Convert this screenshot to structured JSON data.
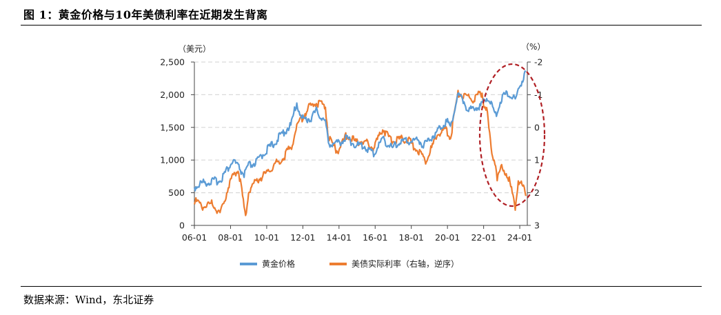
{
  "figure": {
    "title": "图 1：黄金价格与10年美债利率在近期发生背离",
    "source": "数据来源：Wind，东北证券"
  },
  "colors": {
    "gold": "#5b9bd5",
    "real_rate": "#ed7d31",
    "ellipse": "#b01f24",
    "grid": "#d9d9d9"
  },
  "chart_data": {
    "type": "line",
    "title": "",
    "left_axis": {
      "unit": "（美元）",
      "ylim": [
        0,
        2500
      ],
      "ticks": [
        "0",
        "500",
        "1,000",
        "1,500",
        "2,000",
        "2,500"
      ]
    },
    "right_axis": {
      "unit": "（%）",
      "ylim": [
        -2,
        3
      ],
      "inverted": true,
      "ticks": [
        "-2",
        "-1",
        "0",
        "1",
        "2",
        "3"
      ]
    },
    "x_axis": {
      "range": [
        "2006-01",
        "2024-06"
      ],
      "ticks": [
        "06-01",
        "08-01",
        "10-01",
        "12-01",
        "14-01",
        "16-01",
        "18-01",
        "20-01",
        "22-01",
        "24-01"
      ]
    },
    "grid": true,
    "legend_position": "bottom",
    "series": [
      {
        "name": "黄金价格",
        "axis": "left",
        "x": [
          "2006-01",
          "2006-06",
          "2007-01",
          "2007-06",
          "2008-01",
          "2008-03",
          "2008-10",
          "2009-01",
          "2009-06",
          "2009-12",
          "2010-06",
          "2010-12",
          "2011-05",
          "2011-09",
          "2011-12",
          "2012-06",
          "2012-10",
          "2013-04",
          "2013-06",
          "2013-12",
          "2014-06",
          "2014-12",
          "2015-06",
          "2015-12",
          "2016-06",
          "2016-12",
          "2017-06",
          "2017-12",
          "2018-06",
          "2018-09",
          "2019-01",
          "2019-06",
          "2019-09",
          "2020-01",
          "2020-03",
          "2020-08",
          "2020-12",
          "2021-03",
          "2021-06",
          "2021-12",
          "2022-03",
          "2022-06",
          "2022-09",
          "2023-01",
          "2023-05",
          "2023-10",
          "2023-12",
          "2024-03",
          "2024-05"
        ],
        "values": [
          550,
          620,
          640,
          660,
          900,
          960,
          740,
          880,
          930,
          1100,
          1230,
          1390,
          1500,
          1850,
          1600,
          1600,
          1720,
          1550,
          1230,
          1220,
          1310,
          1200,
          1180,
          1060,
          1300,
          1150,
          1250,
          1260,
          1280,
          1190,
          1290,
          1400,
          1500,
          1560,
          1480,
          1970,
          1870,
          1700,
          1780,
          1800,
          1950,
          1820,
          1650,
          1920,
          2000,
          1880,
          2050,
          2200,
          2350
        ]
      },
      {
        "name": "美债实际利率（右轴，逆序）",
        "axis": "right",
        "x": [
          "2006-01",
          "2006-06",
          "2007-01",
          "2007-06",
          "2008-01",
          "2008-06",
          "2008-11",
          "2009-01",
          "2009-06",
          "2009-12",
          "2010-06",
          "2010-12",
          "2011-06",
          "2011-09",
          "2012-06",
          "2012-12",
          "2013-04",
          "2013-06",
          "2013-12",
          "2014-06",
          "2014-12",
          "2015-06",
          "2015-12",
          "2016-06",
          "2016-12",
          "2017-06",
          "2017-12",
          "2018-06",
          "2018-11",
          "2019-06",
          "2019-12",
          "2020-03",
          "2020-08",
          "2020-12",
          "2021-06",
          "2021-12",
          "2022-01",
          "2022-03",
          "2022-06",
          "2022-09",
          "2022-10",
          "2023-01",
          "2023-05",
          "2023-10",
          "2023-12",
          "2024-03",
          "2024-05"
        ],
        "values": [
          2.3,
          2.5,
          2.4,
          2.7,
          1.7,
          1.3,
          2.8,
          2.0,
          1.7,
          1.5,
          1.2,
          1.0,
          0.6,
          0.0,
          -0.6,
          -0.7,
          -0.6,
          0.4,
          0.8,
          0.3,
          0.5,
          0.5,
          0.7,
          0.1,
          0.5,
          0.4,
          0.5,
          0.8,
          1.1,
          0.3,
          0.1,
          0.4,
          -1.0,
          -0.9,
          -0.8,
          -1.0,
          -0.7,
          -0.5,
          0.7,
          1.2,
          1.6,
          1.3,
          1.5,
          2.5,
          1.7,
          1.9,
          2.1
        ]
      }
    ]
  }
}
